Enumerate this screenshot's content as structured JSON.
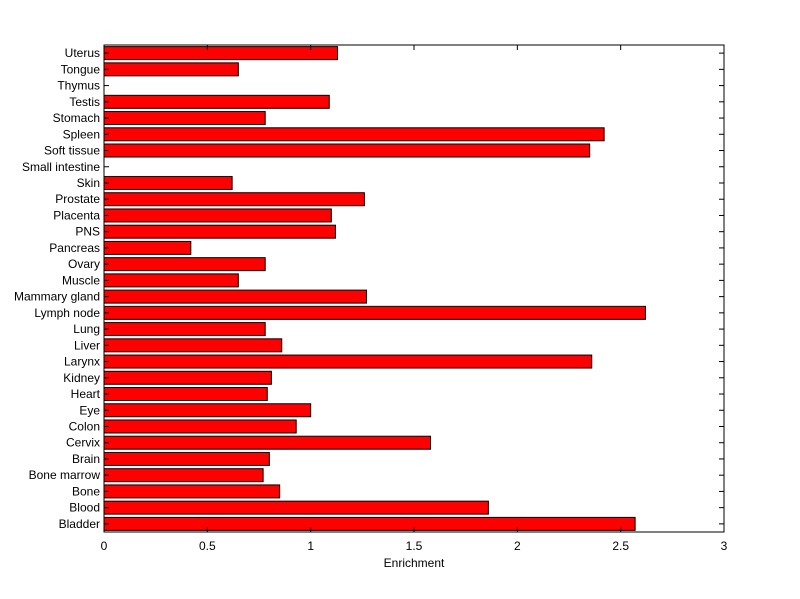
{
  "chart_data": {
    "type": "bar",
    "orientation": "horizontal",
    "categories": [
      "Bladder",
      "Blood",
      "Bone",
      "Bone marrow",
      "Brain",
      "Cervix",
      "Colon",
      "Eye",
      "Heart",
      "Kidney",
      "Larynx",
      "Liver",
      "Lung",
      "Lymph node",
      "Mammary gland",
      "Muscle",
      "Ovary",
      "Pancreas",
      "PNS",
      "Placenta",
      "Prostate",
      "Skin",
      "Small intestine",
      "Soft tissue",
      "Spleen",
      "Stomach",
      "Testis",
      "Thymus",
      "Tongue",
      "Uterus"
    ],
    "values": [
      2.57,
      1.86,
      0.85,
      0.77,
      0.8,
      1.58,
      0.93,
      1.0,
      0.79,
      0.81,
      2.36,
      0.86,
      0.78,
      2.62,
      1.27,
      0.65,
      0.78,
      0.42,
      1.12,
      1.1,
      1.26,
      0.62,
      0,
      2.35,
      2.42,
      0.78,
      1.09,
      0,
      0.65,
      1.13
    ],
    "xlabel": "Enrichment",
    "ylabel": "",
    "xlim": [
      0,
      3
    ],
    "xticks": [
      "0",
      "0.5",
      "1",
      "1.5",
      "2",
      "2.5",
      "3"
    ],
    "grid": false,
    "colors": {
      "bar_fill": "#ff0000",
      "bar_edge": "#000000",
      "axis": "#000000",
      "background": "#ffffff"
    }
  }
}
